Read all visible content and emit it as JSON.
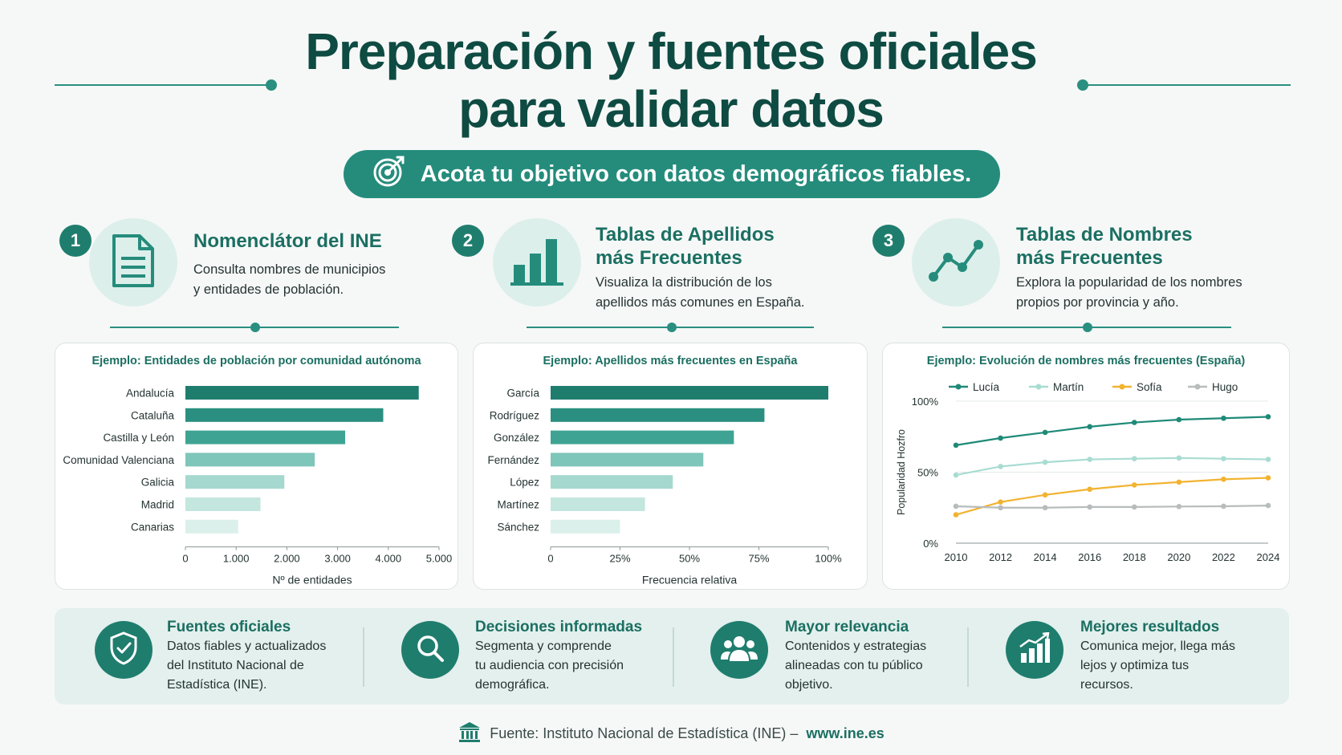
{
  "header": {
    "title_line1": "Preparación y fuentes oficiales",
    "title_line2": "para validar datos",
    "tagline": "Acota tu objetivo con datos demográficos fiables."
  },
  "steps": [
    {
      "number": "1",
      "title_line1": "Nomenclátor del INE",
      "title_line2": "",
      "desc_line1": "Consulta nombres de municipios",
      "desc_line2": "y entidades de población.",
      "icon": "document-icon"
    },
    {
      "number": "2",
      "title_line1": "Tablas de Apellidos",
      "title_line2": "más Frecuentes",
      "desc_line1": "Visualiza la distribución de los",
      "desc_line2": "apellidos más comunes en España.",
      "icon": "bar-chart-icon"
    },
    {
      "number": "3",
      "title_line1": "Tablas de Nombres",
      "title_line2": "más Frecuentes",
      "desc_line1": "Explora la popularidad de los nombres",
      "desc_line2": "propios por provincia y año.",
      "icon": "line-chart-icon"
    }
  ],
  "chart_data": [
    {
      "type": "bar",
      "orientation": "horizontal",
      "title": "Ejemplo: Entidades de población por comunidad autónoma",
      "categories": [
        "Andalucía",
        "Cataluña",
        "Castilla y León",
        "Comunidad Valenciana",
        "Galicia",
        "Madrid",
        "Canarias"
      ],
      "values": [
        4600,
        3900,
        3150,
        2550,
        1950,
        1480,
        1040
      ],
      "xlabel": "Nº de entidades",
      "xlim": [
        0,
        5000
      ],
      "xticks": [
        0,
        1000,
        2000,
        3000,
        4000,
        5000
      ],
      "xtick_labels": [
        "0",
        "1.000",
        "2.000",
        "3.000",
        "4.000",
        "5.000"
      ],
      "colors": [
        "#1f7d6e",
        "#2a8f80",
        "#3fa393",
        "#7ec6b9",
        "#a5d8ce",
        "#c3e6df",
        "#dbf0eb"
      ]
    },
    {
      "type": "bar",
      "orientation": "horizontal",
      "title": "Ejemplo: Apellidos más frecuentes en España",
      "categories": [
        "García",
        "Rodríguez",
        "González",
        "Fernández",
        "López",
        "Martínez",
        "Sánchez"
      ],
      "values": [
        100,
        77,
        66,
        55,
        44,
        34,
        25
      ],
      "xlabel": "Frecuencia relativa",
      "xlim": [
        0,
        100
      ],
      "xticks": [
        0,
        25,
        50,
        75,
        100
      ],
      "xtick_labels": [
        "0",
        "25%",
        "50%",
        "75%",
        "100%"
      ],
      "colors": [
        "#1f7d6e",
        "#2a8f80",
        "#3fa393",
        "#7ec6b9",
        "#a5d8ce",
        "#c3e6df",
        "#dbf0eb"
      ]
    },
    {
      "type": "line",
      "title": "Ejemplo: Evolución de nombres más frecuentes (España)",
      "x": [
        2010,
        2012,
        2014,
        2016,
        2018,
        2020,
        2022,
        2024
      ],
      "ylabel": "Popularidad Hozfro",
      "ylim": [
        0,
        100
      ],
      "yticks": [
        0,
        50,
        100
      ],
      "ytick_labels": [
        "0%",
        "50%",
        "100%"
      ],
      "legend_position": "top",
      "series": [
        {
          "name": "Lucía",
          "color": "#1f8a78",
          "values": [
            69,
            74,
            78,
            82,
            85,
            87,
            88,
            89
          ]
        },
        {
          "name": "Martín",
          "color": "#a8dcd2",
          "values": [
            48,
            54,
            57,
            59,
            59.5,
            60,
            59.5,
            59
          ]
        },
        {
          "name": "Sofía",
          "color": "#f2b330",
          "values": [
            20,
            29,
            34,
            38,
            41,
            43,
            45,
            46
          ]
        },
        {
          "name": "Hugo",
          "color": "#b8bcbc",
          "values": [
            26,
            25,
            25,
            25.5,
            25.5,
            25.8,
            26,
            26.5
          ]
        }
      ]
    }
  ],
  "benefits": [
    {
      "title": "Fuentes oficiales",
      "desc_line1": "Datos fiables y actualizados",
      "desc_line2": "del Instituto Nacional de",
      "desc_line3": "Estadística (INE).",
      "icon": "shield-check-icon"
    },
    {
      "title": "Decisiones informadas",
      "desc_line1": "Segmenta y comprende",
      "desc_line2": "tu audiencia con precisión",
      "desc_line3": "demográfica.",
      "icon": "magnifier-icon"
    },
    {
      "title": "Mayor relevancia",
      "desc_line1": "Contenidos y estrategias",
      "desc_line2": "alineadas con tu público",
      "desc_line3": "objetivo.",
      "icon": "people-icon"
    },
    {
      "title": "Mejores resultados",
      "desc_line1": "Comunica mejor, llega más",
      "desc_line2": "lejos y optimiza tus",
      "desc_line3": "recursos.",
      "icon": "growth-chart-icon"
    }
  ],
  "footer": {
    "source": "Fuente: Instituto Nacional de Estadística (INE) –",
    "url": "www.ine.es",
    "icon": "institution-icon"
  },
  "colors": {
    "primary": "#1f7d6e",
    "title": "#0e4b42",
    "accent_light": "#dcefeb"
  }
}
